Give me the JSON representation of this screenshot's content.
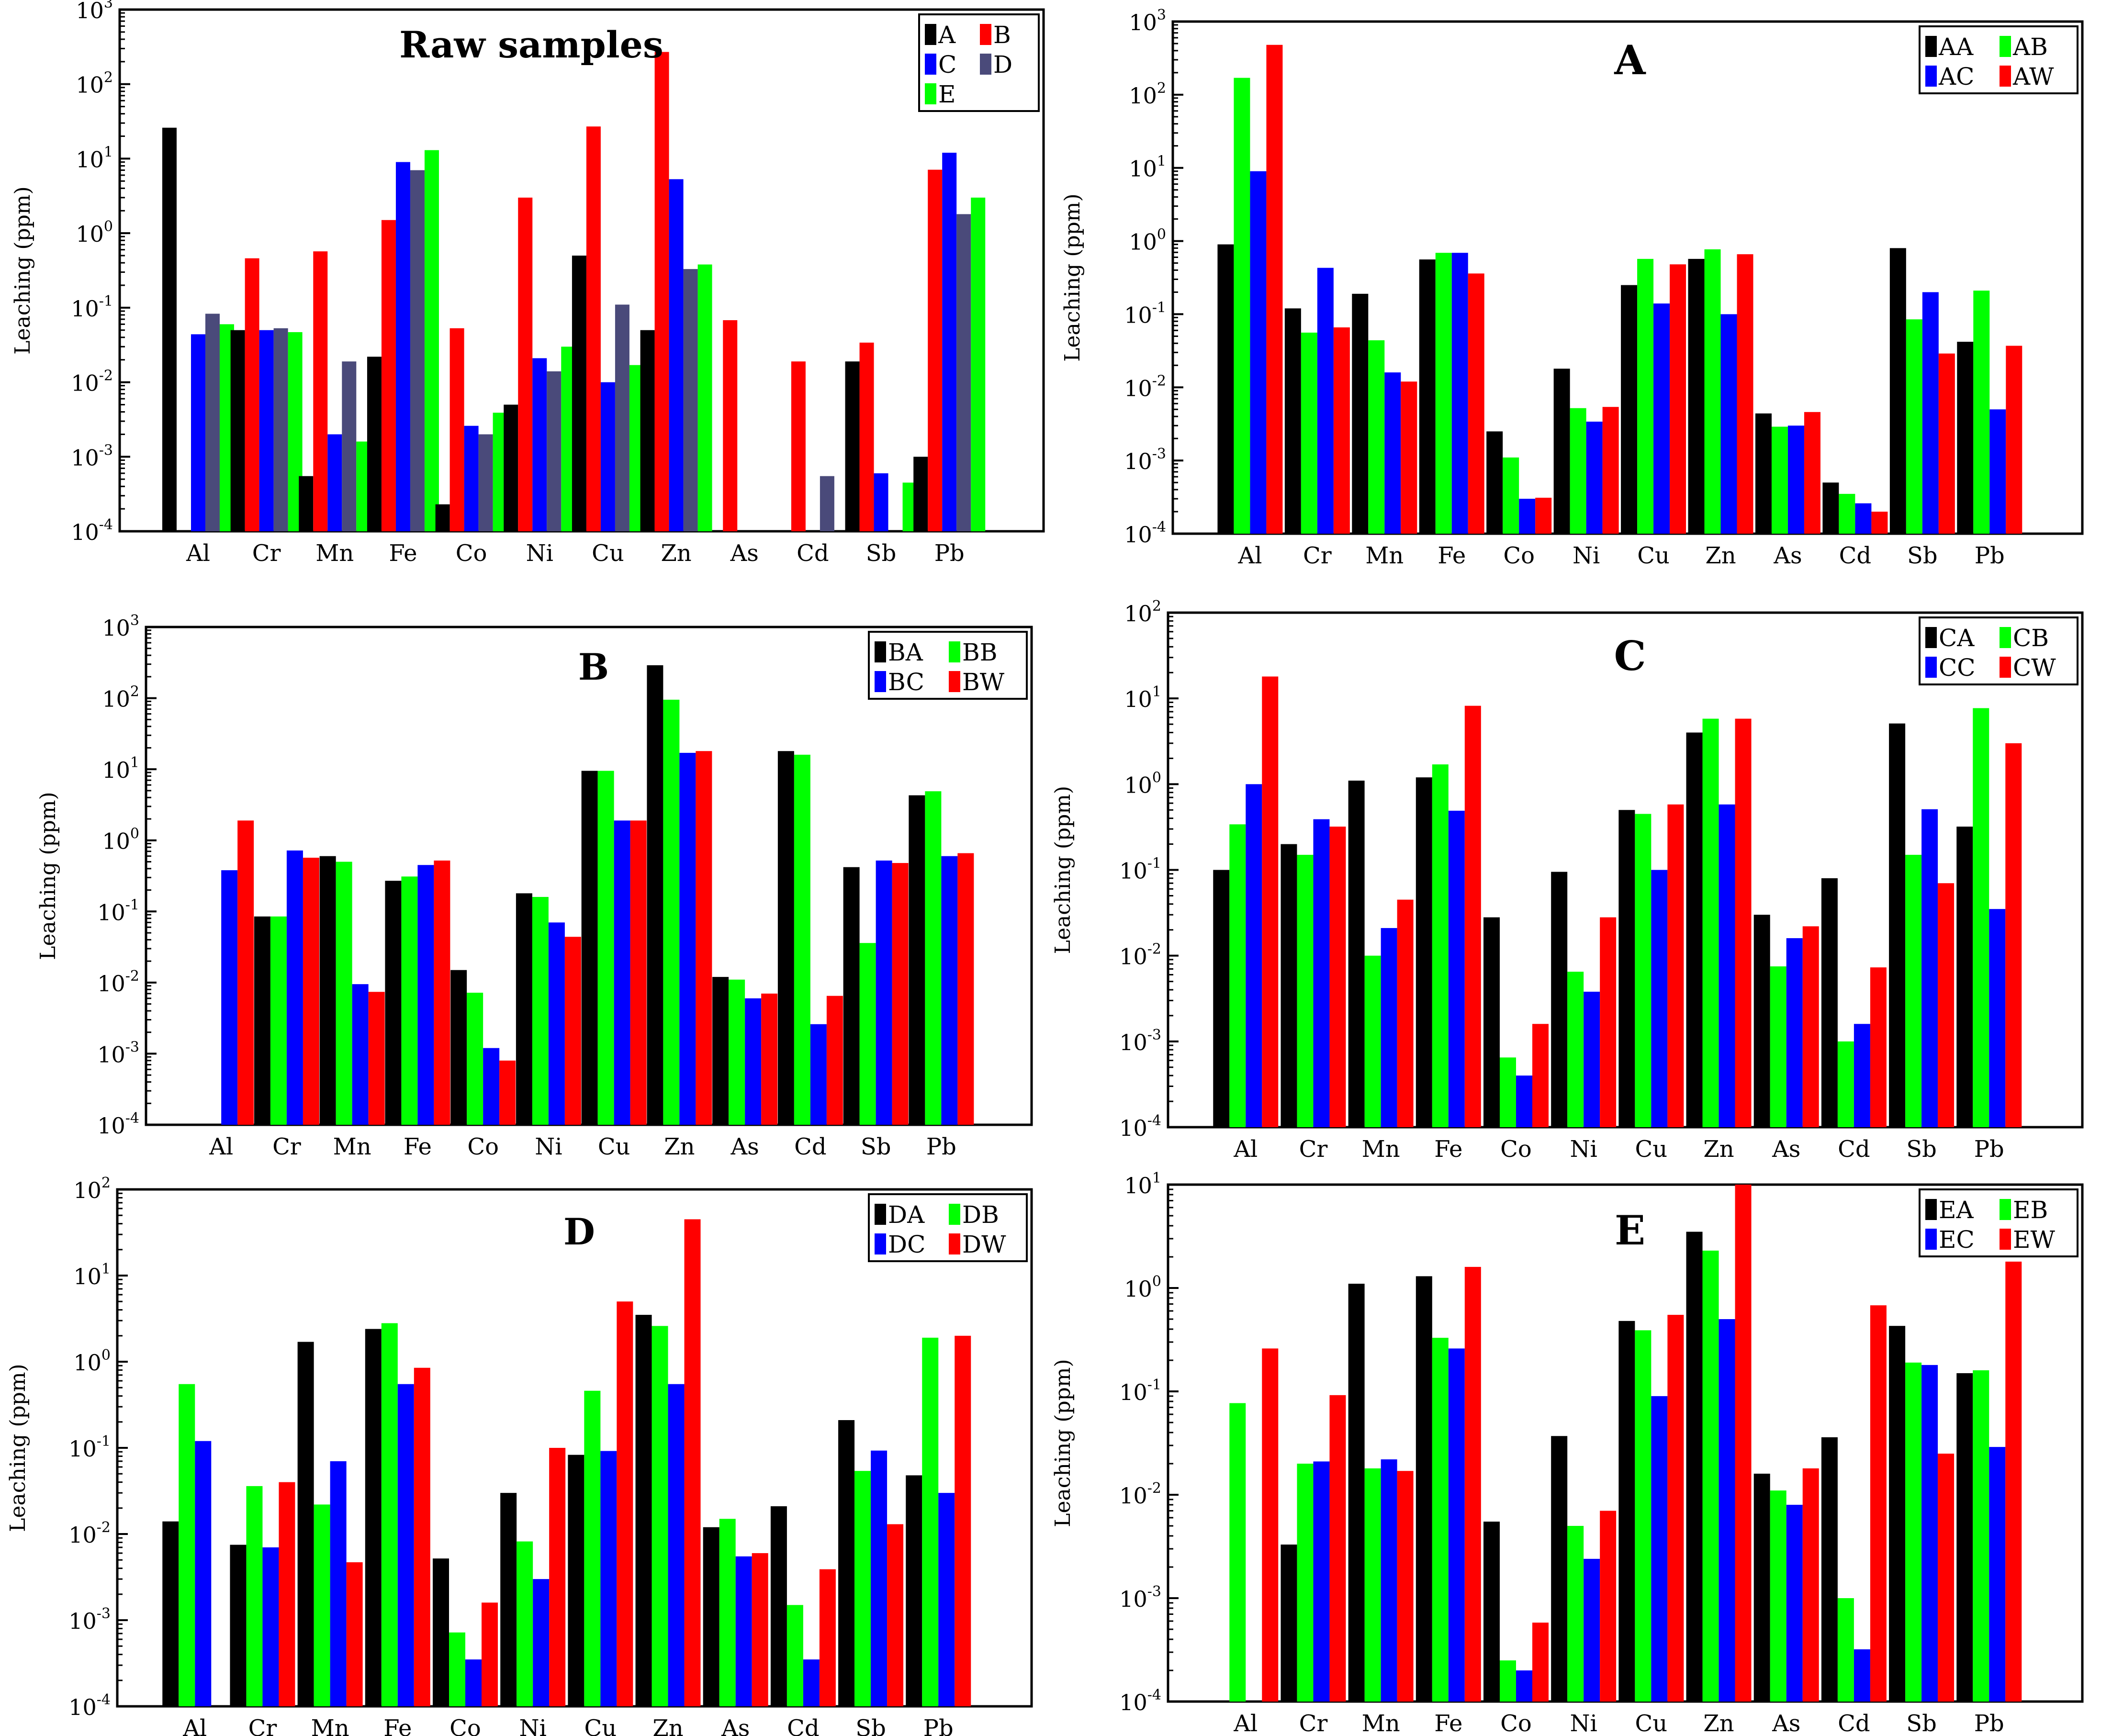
{
  "figure": {
    "ylabel": "Leaching (ppm)",
    "categories": [
      "Al",
      "Cr",
      "Mn",
      "Fe",
      "Co",
      "Ni",
      "Cu",
      "Zn",
      "As",
      "Cd",
      "Sb",
      "Pb"
    ],
    "colors": {
      "black": "#000000",
      "red": "#ff0000",
      "blue": "#0000ff",
      "slate": "#4a4a7a",
      "green": "#00ff00"
    }
  },
  "chart_data": [
    {
      "type": "bar",
      "title": "Raw samples",
      "xlabel": "",
      "ylabel": "Leaching (ppm)",
      "yscale": "log",
      "ylim": [
        0.0001,
        1000
      ],
      "y_tick_labels": [
        "10^-4",
        "10^-3",
        "10^-2",
        "10^-1",
        "10^0",
        "10^1",
        "10^2"
      ],
      "legend_position": "top-right",
      "categories": [
        "Al",
        "Cr",
        "Mn",
        "Fe",
        "Co",
        "Ni",
        "Cu",
        "Zn",
        "As",
        "Cd",
        "Sb",
        "Pb"
      ],
      "series": [
        {
          "name": "A",
          "color": "#000000",
          "values": [
            26,
            0.05,
            0.00055,
            0.022,
            0.00023,
            0.005,
            0.5,
            0.05,
            null,
            null,
            0.019,
            0.001
          ]
        },
        {
          "name": "B",
          "color": "#ff0000",
          "values": [
            null,
            0.46,
            0.57,
            1.5,
            0.053,
            3.0,
            27,
            270,
            0.068,
            0.019,
            0.034,
            7.1
          ]
        },
        {
          "name": "C",
          "color": "#0000ff",
          "values": [
            0.044,
            0.05,
            0.002,
            9.0,
            0.0026,
            0.021,
            0.01,
            5.3,
            null,
            null,
            0.0006,
            12
          ]
        },
        {
          "name": "D",
          "color": "#4a4a7a",
          "values": [
            0.083,
            0.053,
            0.019,
            7.0,
            0.002,
            0.014,
            0.11,
            0.33,
            null,
            0.00055,
            null,
            1.8
          ]
        },
        {
          "name": "E",
          "color": "#00ff00",
          "values": [
            0.06,
            0.047,
            0.0016,
            13,
            0.0039,
            0.03,
            0.017,
            0.38,
            null,
            null,
            0.00045,
            3.0
          ]
        }
      ]
    },
    {
      "type": "bar",
      "title": "A",
      "xlabel": "",
      "ylabel": "Leaching (ppm)",
      "yscale": "log",
      "ylim": [
        0.0001,
        1000
      ],
      "y_tick_labels": [
        "10^-4",
        "10^-3",
        "10^-2",
        "10^-1",
        "10^0",
        "10^1",
        "10^2",
        "10^3"
      ],
      "legend_position": "top-right",
      "categories": [
        "Al",
        "Cr",
        "Mn",
        "Fe",
        "Co",
        "Ni",
        "Cu",
        "Zn",
        "As",
        "Cd",
        "Sb",
        "Pb"
      ],
      "series": [
        {
          "name": "AA",
          "color": "#000000",
          "values": [
            0.9,
            0.12,
            0.19,
            0.56,
            0.0025,
            0.018,
            0.25,
            0.57,
            0.0044,
            0.0005,
            0.8,
            0.042
          ]
        },
        {
          "name": "AB",
          "color": "#00ff00",
          "values": [
            170,
            0.056,
            0.044,
            0.69,
            0.0011,
            0.0052,
            0.57,
            0.77,
            0.0029,
            0.00035,
            0.085,
            0.21
          ]
        },
        {
          "name": "AC",
          "color": "#0000ff",
          "values": [
            9.0,
            0.43,
            0.016,
            0.69,
            0.0003,
            0.0034,
            0.14,
            0.1,
            0.003,
            0.00026,
            0.2,
            0.005
          ]
        },
        {
          "name": "AW",
          "color": "#ff0000",
          "values": [
            480,
            0.066,
            0.012,
            0.36,
            0.00031,
            0.0054,
            0.48,
            0.66,
            0.0046,
            0.0002,
            0.029,
            0.037
          ]
        }
      ]
    },
    {
      "type": "bar",
      "title": "B",
      "xlabel": "",
      "ylabel": "Leaching (ppm)",
      "yscale": "log",
      "ylim": [
        0.0001,
        1000
      ],
      "y_tick_labels": [
        "10^-4",
        "10^-3",
        "10^-2",
        "10^-1",
        "10^0",
        "10^1",
        "10^2",
        "10^3"
      ],
      "legend_position": "top-right",
      "categories": [
        "Al",
        "Cr",
        "Mn",
        "Fe",
        "Co",
        "Ni",
        "Cu",
        "Zn",
        "As",
        "Cd",
        "Sb",
        "Pb"
      ],
      "series": [
        {
          "name": "BA",
          "color": "#000000",
          "values": [
            null,
            0.085,
            0.6,
            0.27,
            0.015,
            0.18,
            9.5,
            290,
            0.012,
            18,
            0.42,
            4.3
          ]
        },
        {
          "name": "BB",
          "color": "#00ff00",
          "values": [
            null,
            0.085,
            0.5,
            0.31,
            0.0072,
            0.16,
            9.5,
            95,
            0.011,
            16,
            0.036,
            4.9
          ]
        },
        {
          "name": "BC",
          "color": "#0000ff",
          "values": [
            0.38,
            0.72,
            0.0095,
            0.45,
            0.0012,
            0.07,
            1.9,
            17,
            0.006,
            0.0026,
            0.52,
            0.6
          ]
        },
        {
          "name": "BW",
          "color": "#ff0000",
          "values": [
            1.9,
            0.57,
            0.0074,
            0.52,
            0.0008,
            0.044,
            1.9,
            18,
            0.007,
            0.0065,
            0.48,
            0.66
          ]
        }
      ]
    },
    {
      "type": "bar",
      "title": "C",
      "xlabel": "",
      "ylabel": "Leaching (ppm)",
      "yscale": "log",
      "ylim": [
        0.0001,
        100
      ],
      "y_tick_labels": [
        "10^-4",
        "10^-3",
        "10^-2",
        "10^-1",
        "10^0",
        "10^1",
        "10^2"
      ],
      "legend_position": "top-right",
      "categories": [
        "Al",
        "Cr",
        "Mn",
        "Fe",
        "Co",
        "Ni",
        "Cu",
        "Zn",
        "As",
        "Cd",
        "Sb",
        "Pb"
      ],
      "series": [
        {
          "name": "CA",
          "color": "#000000",
          "values": [
            0.1,
            0.2,
            1.1,
            1.2,
            0.028,
            0.095,
            0.5,
            4.0,
            0.03,
            0.08,
            5.1,
            0.32
          ]
        },
        {
          "name": "CB",
          "color": "#00ff00",
          "values": [
            0.34,
            0.15,
            0.01,
            1.7,
            0.00065,
            0.0065,
            0.45,
            5.8,
            0.0075,
            0.001,
            0.15,
            7.7
          ]
        },
        {
          "name": "CC",
          "color": "#0000ff",
          "values": [
            1.0,
            0.39,
            0.021,
            0.49,
            0.0004,
            0.0038,
            0.1,
            0.58,
            0.016,
            0.0016,
            0.51,
            0.035
          ]
        },
        {
          "name": "CW",
          "color": "#ff0000",
          "values": [
            18,
            0.32,
            0.045,
            8.2,
            0.0016,
            0.028,
            0.58,
            5.8,
            0.022,
            0.0073,
            0.07,
            3.0
          ]
        }
      ]
    },
    {
      "type": "bar",
      "title": "D",
      "xlabel": "",
      "ylabel": "Leaching (ppm)",
      "yscale": "log",
      "ylim": [
        0.0001,
        100
      ],
      "y_tick_labels": [
        "10^-4",
        "10^-3",
        "10^-2",
        "10^-1",
        "10^0",
        "10^1",
        "10^2"
      ],
      "legend_position": "top-right",
      "categories": [
        "Al",
        "Cr",
        "Mn",
        "Fe",
        "Co",
        "Ni",
        "Cu",
        "Zn",
        "As",
        "Cd",
        "Sb",
        "Pb"
      ],
      "series": [
        {
          "name": "DA",
          "color": "#000000",
          "values": [
            0.014,
            0.0075,
            1.7,
            2.4,
            0.0052,
            0.03,
            0.083,
            3.5,
            0.012,
            0.021,
            0.21,
            0.048
          ]
        },
        {
          "name": "DB",
          "color": "#00ff00",
          "values": [
            0.55,
            0.036,
            0.022,
            2.8,
            0.00072,
            0.0082,
            0.46,
            2.6,
            0.015,
            0.0015,
            0.054,
            1.9
          ]
        },
        {
          "name": "DC",
          "color": "#0000ff",
          "values": [
            0.12,
            0.007,
            0.07,
            0.55,
            0.00035,
            0.003,
            0.092,
            0.55,
            0.0055,
            0.00035,
            0.093,
            0.03
          ]
        },
        {
          "name": "DW",
          "color": "#ff0000",
          "values": [
            null,
            0.04,
            0.0047,
            0.85,
            0.0016,
            0.1,
            5.0,
            45,
            0.006,
            0.0039,
            0.013,
            2.0
          ]
        }
      ]
    },
    {
      "type": "bar",
      "title": "E",
      "xlabel": "",
      "ylabel": "Leaching (ppm)",
      "yscale": "log",
      "ylim": [
        0.0001,
        10
      ],
      "y_tick_labels": [
        "10^-4",
        "10^-3",
        "10^-2",
        "10^-1",
        "10^0",
        "10^1"
      ],
      "legend_position": "top-right",
      "categories": [
        "Al",
        "Cr",
        "Mn",
        "Fe",
        "Co",
        "Ni",
        "Cu",
        "Zn",
        "As",
        "Cd",
        "Sb",
        "Pb"
      ],
      "series": [
        {
          "name": "EA",
          "color": "#000000",
          "values": [
            null,
            0.0033,
            1.1,
            1.3,
            0.0055,
            0.037,
            0.48,
            3.5,
            0.016,
            0.036,
            0.43,
            0.15
          ]
        },
        {
          "name": "EB",
          "color": "#00ff00",
          "values": [
            0.077,
            0.02,
            0.018,
            0.33,
            0.00025,
            0.005,
            0.39,
            2.3,
            0.011,
            0.001,
            0.19,
            0.16
          ]
        },
        {
          "name": "EC",
          "color": "#0000ff",
          "values": [
            null,
            0.021,
            0.022,
            0.26,
            0.0002,
            0.0024,
            0.09,
            0.5,
            0.008,
            0.00032,
            0.18,
            0.029
          ]
        },
        {
          "name": "EW",
          "color": "#ff0000",
          "values": [
            0.26,
            0.092,
            0.017,
            1.6,
            0.00058,
            0.007,
            0.55,
            10,
            0.018,
            0.68,
            0.025,
            1.8
          ]
        }
      ]
    }
  ]
}
